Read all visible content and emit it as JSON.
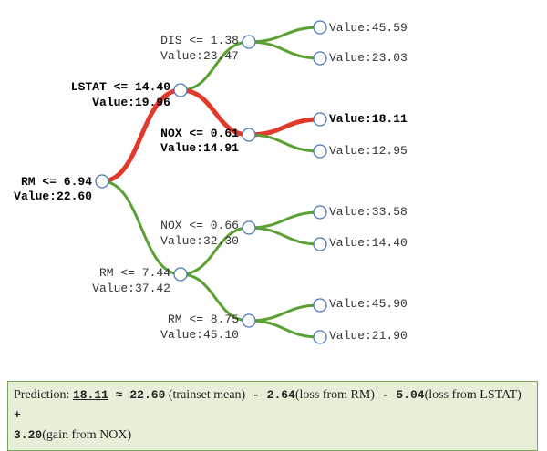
{
  "colors": {
    "active_path": "#e03a2c",
    "inactive_path": "#5aa032",
    "node_stroke": "#4a78b5",
    "box_bg": "#e6f0d8",
    "box_border": "#7aa25a"
  },
  "nodes": {
    "root": {
      "split": "RM <= 6.94",
      "value": "Value:22.60"
    },
    "n_l": {
      "split": "LSTAT <= 14.40",
      "value": "Value:19.96"
    },
    "n_ll": {
      "split": "DIS <= 1.38",
      "value": "Value:23.47"
    },
    "n_lr": {
      "split": "NOX <= 0.61",
      "value": "Value:14.91"
    },
    "n_r": {
      "split": "RM <= 7.44",
      "value": "Value:37.42"
    },
    "n_rl": {
      "split": "NOX <= 0.66",
      "value": "Value:32.30"
    },
    "n_rr": {
      "split": "RM <= 8.75",
      "value": "Value:45.10"
    }
  },
  "leaves": {
    "lll": "Value:45.59",
    "llr": "Value:23.03",
    "lrl": "Value:18.11",
    "lrr": "Value:12.95",
    "rll": "Value:33.58",
    "rlr": "Value:14.40",
    "rrl": "Value:45.90",
    "rrr": "Value:21.90"
  },
  "prediction": {
    "label": "Prediction: ",
    "value": "18.11",
    "approx": " ≈ ",
    "mean": "22.60",
    "mean_note": " (trainset mean)",
    "minus1": " - ",
    "c1": "2.64",
    "c1_note": "(loss from RM)",
    "minus2": " - ",
    "c2": "5.04",
    "c2_note": "(loss from LSTAT)",
    "plus": " + ",
    "c3": "3.20",
    "c3_note": "(gain from NOX)"
  }
}
